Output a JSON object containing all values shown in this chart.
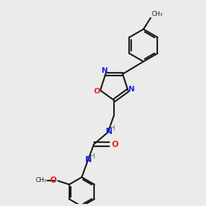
{
  "background_color": "#ebebeb",
  "bond_color": "#1a1a1a",
  "N_color": "#2020ee",
  "O_color": "#ee2020",
  "H_color": "#607878",
  "line_width": 1.6,
  "figsize": [
    3.0,
    3.0
  ],
  "dpi": 100,
  "xlim": [
    0,
    10
  ],
  "ylim": [
    0,
    10
  ]
}
